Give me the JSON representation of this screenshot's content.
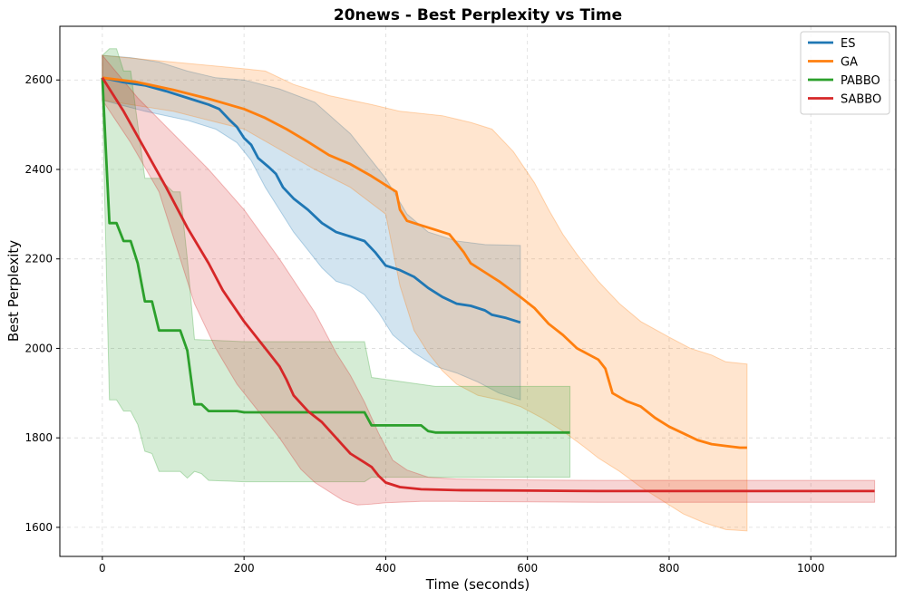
{
  "chart_data": {
    "type": "line",
    "title": "20news - Best Perplexity vs Time",
    "xlabel": "Time (seconds)",
    "ylabel": "Best Perplexity",
    "xlim": [
      -60,
      1120
    ],
    "ylim": [
      1535,
      2720
    ],
    "xticks": [
      0,
      200,
      400,
      600,
      800,
      1000
    ],
    "yticks": [
      1600,
      1800,
      2000,
      2200,
      2400,
      2600
    ],
    "grid": true,
    "legend_position": "top-right",
    "series": [
      {
        "name": "ES",
        "color": "#1f77b4",
        "line": [
          [
            0,
            2605
          ],
          [
            30,
            2595
          ],
          [
            60,
            2588
          ],
          [
            90,
            2575
          ],
          [
            120,
            2560
          ],
          [
            150,
            2545
          ],
          [
            165,
            2535
          ],
          [
            180,
            2510
          ],
          [
            190,
            2495
          ],
          [
            200,
            2470
          ],
          [
            210,
            2455
          ],
          [
            220,
            2425
          ],
          [
            235,
            2405
          ],
          [
            245,
            2390
          ],
          [
            255,
            2360
          ],
          [
            270,
            2335
          ],
          [
            290,
            2310
          ],
          [
            310,
            2280
          ],
          [
            330,
            2260
          ],
          [
            350,
            2250
          ],
          [
            370,
            2240
          ],
          [
            385,
            2215
          ],
          [
            400,
            2185
          ],
          [
            420,
            2175
          ],
          [
            440,
            2160
          ],
          [
            460,
            2135
          ],
          [
            480,
            2115
          ],
          [
            500,
            2100
          ],
          [
            520,
            2095
          ],
          [
            540,
            2085
          ],
          [
            550,
            2075
          ],
          [
            570,
            2068
          ],
          [
            590,
            2058
          ]
        ],
        "upper": [
          [
            0,
            2655
          ],
          [
            40,
            2650
          ],
          [
            80,
            2640
          ],
          [
            120,
            2620
          ],
          [
            160,
            2605
          ],
          [
            200,
            2600
          ],
          [
            250,
            2580
          ],
          [
            300,
            2550
          ],
          [
            350,
            2480
          ],
          [
            400,
            2380
          ],
          [
            430,
            2300
          ],
          [
            460,
            2260
          ],
          [
            500,
            2240
          ],
          [
            540,
            2232
          ],
          [
            590,
            2230
          ]
        ],
        "lower": [
          [
            0,
            2555
          ],
          [
            60,
            2530
          ],
          [
            120,
            2510
          ],
          [
            160,
            2490
          ],
          [
            190,
            2460
          ],
          [
            210,
            2420
          ],
          [
            230,
            2360
          ],
          [
            250,
            2310
          ],
          [
            270,
            2260
          ],
          [
            290,
            2220
          ],
          [
            310,
            2180
          ],
          [
            330,
            2150
          ],
          [
            350,
            2140
          ],
          [
            370,
            2120
          ],
          [
            390,
            2080
          ],
          [
            410,
            2030
          ],
          [
            440,
            1990
          ],
          [
            470,
            1960
          ],
          [
            500,
            1945
          ],
          [
            530,
            1925
          ],
          [
            560,
            1900
          ],
          [
            590,
            1885
          ]
        ]
      },
      {
        "name": "GA",
        "color": "#ff7f0e",
        "line": [
          [
            0,
            2605
          ],
          [
            50,
            2595
          ],
          [
            100,
            2578
          ],
          [
            150,
            2558
          ],
          [
            200,
            2535
          ],
          [
            230,
            2515
          ],
          [
            260,
            2490
          ],
          [
            290,
            2462
          ],
          [
            320,
            2432
          ],
          [
            350,
            2412
          ],
          [
            380,
            2385
          ],
          [
            400,
            2365
          ],
          [
            415,
            2350
          ],
          [
            420,
            2310
          ],
          [
            430,
            2285
          ],
          [
            450,
            2275
          ],
          [
            470,
            2265
          ],
          [
            490,
            2255
          ],
          [
            500,
            2235
          ],
          [
            510,
            2215
          ],
          [
            520,
            2190
          ],
          [
            540,
            2170
          ],
          [
            560,
            2150
          ],
          [
            590,
            2115
          ],
          [
            610,
            2090
          ],
          [
            630,
            2055
          ],
          [
            650,
            2030
          ],
          [
            670,
            2000
          ],
          [
            700,
            1975
          ],
          [
            710,
            1955
          ],
          [
            720,
            1900
          ],
          [
            740,
            1882
          ],
          [
            760,
            1870
          ],
          [
            780,
            1845
          ],
          [
            800,
            1825
          ],
          [
            820,
            1810
          ],
          [
            840,
            1795
          ],
          [
            860,
            1786
          ],
          [
            880,
            1782
          ],
          [
            900,
            1778
          ],
          [
            910,
            1778
          ]
        ],
        "upper": [
          [
            0,
            2655
          ],
          [
            100,
            2640
          ],
          [
            200,
            2625
          ],
          [
            230,
            2620
          ],
          [
            270,
            2590
          ],
          [
            320,
            2565
          ],
          [
            380,
            2545
          ],
          [
            420,
            2530
          ],
          [
            480,
            2520
          ],
          [
            520,
            2505
          ],
          [
            550,
            2490
          ],
          [
            580,
            2440
          ],
          [
            610,
            2370
          ],
          [
            630,
            2310
          ],
          [
            650,
            2255
          ],
          [
            670,
            2210
          ],
          [
            700,
            2150
          ],
          [
            730,
            2100
          ],
          [
            760,
            2060
          ],
          [
            800,
            2025
          ],
          [
            830,
            2000
          ],
          [
            860,
            1985
          ],
          [
            880,
            1970
          ],
          [
            910,
            1965
          ]
        ],
        "lower": [
          [
            0,
            2555
          ],
          [
            100,
            2530
          ],
          [
            200,
            2490
          ],
          [
            300,
            2400
          ],
          [
            350,
            2360
          ],
          [
            400,
            2300
          ],
          [
            420,
            2140
          ],
          [
            440,
            2040
          ],
          [
            460,
            1990
          ],
          [
            480,
            1950
          ],
          [
            500,
            1920
          ],
          [
            530,
            1895
          ],
          [
            560,
            1885
          ],
          [
            590,
            1870
          ],
          [
            620,
            1845
          ],
          [
            650,
            1815
          ],
          [
            680,
            1780
          ],
          [
            700,
            1755
          ],
          [
            730,
            1725
          ],
          [
            760,
            1690
          ],
          [
            790,
            1660
          ],
          [
            820,
            1630
          ],
          [
            850,
            1610
          ],
          [
            880,
            1595
          ],
          [
            910,
            1592
          ]
        ]
      },
      {
        "name": "PABBO",
        "color": "#2ca02c",
        "line": [
          [
            0,
            2605
          ],
          [
            5,
            2440
          ],
          [
            10,
            2280
          ],
          [
            20,
            2280
          ],
          [
            30,
            2240
          ],
          [
            40,
            2240
          ],
          [
            50,
            2190
          ],
          [
            60,
            2105
          ],
          [
            70,
            2105
          ],
          [
            80,
            2040
          ],
          [
            100,
            2040
          ],
          [
            110,
            2040
          ],
          [
            120,
            1995
          ],
          [
            130,
            1875
          ],
          [
            140,
            1875
          ],
          [
            150,
            1860
          ],
          [
            170,
            1860
          ],
          [
            190,
            1860
          ],
          [
            200,
            1857
          ],
          [
            250,
            1857
          ],
          [
            300,
            1857
          ],
          [
            350,
            1857
          ],
          [
            370,
            1857
          ],
          [
            380,
            1828
          ],
          [
            400,
            1828
          ],
          [
            420,
            1828
          ],
          [
            450,
            1828
          ],
          [
            460,
            1815
          ],
          [
            470,
            1812
          ],
          [
            500,
            1812
          ],
          [
            550,
            1812
          ],
          [
            600,
            1812
          ],
          [
            660,
            1812
          ]
        ],
        "upper": [
          [
            0,
            2655
          ],
          [
            10,
            2670
          ],
          [
            20,
            2670
          ],
          [
            30,
            2620
          ],
          [
            40,
            2620
          ],
          [
            60,
            2380
          ],
          [
            80,
            2380
          ],
          [
            100,
            2350
          ],
          [
            110,
            2350
          ],
          [
            120,
            2200
          ],
          [
            130,
            2020
          ],
          [
            200,
            2015
          ],
          [
            370,
            2015
          ],
          [
            380,
            1935
          ],
          [
            470,
            1915
          ],
          [
            660,
            1915
          ]
        ],
        "lower": [
          [
            0,
            2555
          ],
          [
            10,
            1885
          ],
          [
            20,
            1885
          ],
          [
            30,
            1860
          ],
          [
            40,
            1860
          ],
          [
            50,
            1830
          ],
          [
            60,
            1770
          ],
          [
            70,
            1765
          ],
          [
            80,
            1725
          ],
          [
            110,
            1725
          ],
          [
            120,
            1710
          ],
          [
            130,
            1725
          ],
          [
            140,
            1720
          ],
          [
            150,
            1705
          ],
          [
            200,
            1702
          ],
          [
            370,
            1702
          ],
          [
            380,
            1712
          ],
          [
            660,
            1712
          ]
        ]
      },
      {
        "name": "SABBO",
        "color": "#d62728",
        "line": [
          [
            0,
            2605
          ],
          [
            30,
            2530
          ],
          [
            60,
            2445
          ],
          [
            90,
            2360
          ],
          [
            120,
            2270
          ],
          [
            150,
            2190
          ],
          [
            170,
            2130
          ],
          [
            200,
            2060
          ],
          [
            230,
            2000
          ],
          [
            250,
            1960
          ],
          [
            260,
            1930
          ],
          [
            270,
            1895
          ],
          [
            290,
            1860
          ],
          [
            310,
            1835
          ],
          [
            330,
            1800
          ],
          [
            350,
            1765
          ],
          [
            370,
            1745
          ],
          [
            380,
            1735
          ],
          [
            390,
            1715
          ],
          [
            400,
            1700
          ],
          [
            420,
            1690
          ],
          [
            450,
            1685
          ],
          [
            500,
            1683
          ],
          [
            600,
            1682
          ],
          [
            700,
            1681
          ],
          [
            800,
            1681
          ],
          [
            900,
            1681
          ],
          [
            1000,
            1681
          ],
          [
            1090,
            1681
          ]
        ],
        "upper": [
          [
            0,
            2655
          ],
          [
            50,
            2560
          ],
          [
            100,
            2480
          ],
          [
            150,
            2400
          ],
          [
            200,
            2310
          ],
          [
            250,
            2200
          ],
          [
            300,
            2080
          ],
          [
            330,
            1990
          ],
          [
            350,
            1940
          ],
          [
            370,
            1880
          ],
          [
            390,
            1810
          ],
          [
            410,
            1750
          ],
          [
            430,
            1728
          ],
          [
            460,
            1712
          ],
          [
            500,
            1708
          ],
          [
            600,
            1706
          ],
          [
            700,
            1705
          ],
          [
            800,
            1705
          ],
          [
            900,
            1705
          ],
          [
            1000,
            1705
          ],
          [
            1090,
            1705
          ]
        ],
        "lower": [
          [
            0,
            2555
          ],
          [
            40,
            2460
          ],
          [
            80,
            2350
          ],
          [
            110,
            2200
          ],
          [
            130,
            2100
          ],
          [
            160,
            2000
          ],
          [
            190,
            1920
          ],
          [
            220,
            1860
          ],
          [
            250,
            1800
          ],
          [
            280,
            1730
          ],
          [
            300,
            1700
          ],
          [
            320,
            1680
          ],
          [
            340,
            1660
          ],
          [
            360,
            1650
          ],
          [
            380,
            1652
          ],
          [
            400,
            1655
          ],
          [
            450,
            1658
          ],
          [
            500,
            1658
          ],
          [
            600,
            1657
          ],
          [
            700,
            1656
          ],
          [
            800,
            1656
          ],
          [
            900,
            1656
          ],
          [
            1000,
            1656
          ],
          [
            1090,
            1656
          ]
        ]
      }
    ]
  }
}
